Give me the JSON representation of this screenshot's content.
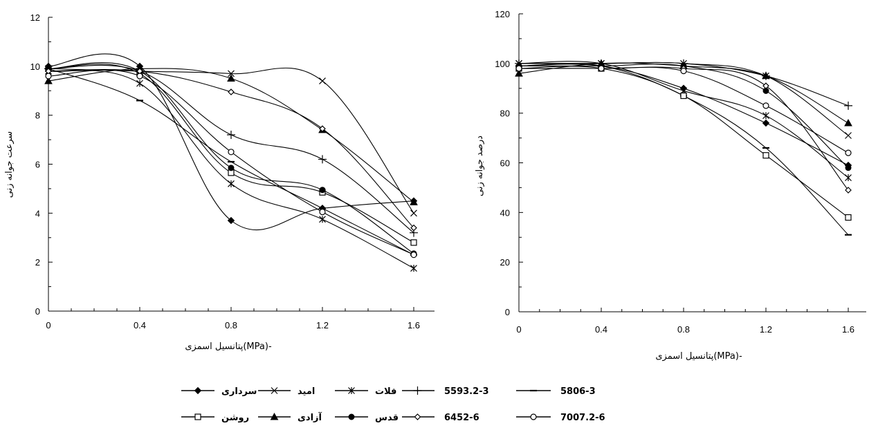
{
  "chart_data": [
    {
      "type": "line",
      "xlabel": "پتانسیل اسمزی(MPa)-",
      "ylabel": "سرعت جوانه زنی",
      "x": [
        0,
        0.4,
        0.8,
        1.2,
        1.6
      ],
      "xticks": [
        "0",
        "0.4",
        "0.8",
        "1.2",
        "1.6"
      ],
      "xlim": [
        0,
        1.6
      ],
      "ylim": [
        0,
        12
      ],
      "yticks": [
        "0",
        "2",
        "4",
        "6",
        "8",
        "10",
        "12"
      ],
      "grid": false,
      "series": [
        {
          "name": "سرداری",
          "marker": "diamond-filled",
          "values": [
            10.0,
            10.0,
            3.7,
            4.2,
            4.5
          ]
        },
        {
          "name": "امید",
          "marker": "x",
          "values": [
            9.9,
            9.8,
            9.7,
            9.4,
            4.0
          ]
        },
        {
          "name": "فلات",
          "marker": "star",
          "values": [
            9.8,
            9.3,
            5.2,
            3.75,
            1.75
          ]
        },
        {
          "name": "5593.2-3",
          "marker": "plus",
          "values": [
            9.9,
            9.8,
            7.2,
            6.2,
            3.2
          ]
        },
        {
          "name": "5806-3",
          "marker": "dash",
          "values": [
            9.9,
            8.6,
            6.1,
            4.2,
            2.3
          ]
        },
        {
          "name": "روشن",
          "marker": "square-open",
          "values": [
            9.9,
            9.7,
            5.65,
            4.85,
            2.8
          ]
        },
        {
          "name": "آزادی",
          "marker": "triangle-filled",
          "values": [
            9.4,
            9.9,
            9.5,
            7.4,
            4.45
          ]
        },
        {
          "name": "قدس",
          "marker": "circle-filled",
          "values": [
            9.9,
            9.8,
            5.85,
            4.95,
            2.35
          ]
        },
        {
          "name": "6452-6",
          "marker": "diamond-open",
          "values": [
            9.8,
            9.8,
            8.95,
            7.45,
            3.4
          ]
        },
        {
          "name": "7007.2-6",
          "marker": "circle-open",
          "values": [
            9.6,
            9.6,
            6.5,
            4.05,
            2.3
          ]
        }
      ]
    },
    {
      "type": "line",
      "xlabel": "پتانسیل اسمزی(MPa)-",
      "ylabel": "درصد جوانه زنی",
      "x": [
        0,
        0.4,
        0.8,
        1.2,
        1.6
      ],
      "xticks": [
        "0",
        "0.4",
        "0.8",
        "1.2",
        "1.6"
      ],
      "xlim": [
        0,
        1.6
      ],
      "ylim": [
        0,
        120
      ],
      "yticks": [
        "0",
        "20",
        "40",
        "60",
        "80",
        "100",
        "120"
      ],
      "grid": false,
      "series": [
        {
          "name": "سرداری",
          "marker": "diamond-filled",
          "values": [
            99,
            99,
            90,
            76,
            59
          ]
        },
        {
          "name": "امید",
          "marker": "x",
          "values": [
            100,
            100,
            100,
            95,
            71
          ]
        },
        {
          "name": "فلات",
          "marker": "star",
          "values": [
            100,
            100,
            89,
            79,
            54
          ]
        },
        {
          "name": "5593.2-3",
          "marker": "plus",
          "values": [
            100,
            100,
            100,
            95,
            83
          ]
        },
        {
          "name": "5806-3",
          "marker": "dash",
          "values": [
            99,
            99,
            87,
            66,
            31
          ]
        },
        {
          "name": "روشن",
          "marker": "square-open",
          "values": [
            98,
            98,
            87,
            63,
            38
          ]
        },
        {
          "name": "آزادی",
          "marker": "triangle-filled",
          "values": [
            96,
            100,
            99,
            95,
            76
          ]
        },
        {
          "name": "قدس",
          "marker": "circle-filled",
          "values": [
            99,
            99,
            99,
            89,
            58
          ]
        },
        {
          "name": "6452-6",
          "marker": "diamond-open",
          "values": [
            98,
            98,
            98,
            91,
            49
          ]
        },
        {
          "name": "7007.2-6",
          "marker": "circle-open",
          "values": [
            98,
            98,
            97,
            83,
            64
          ]
        }
      ]
    }
  ],
  "legend": {
    "placement": "bottom",
    "rows": [
      [
        "سرداری",
        "امید",
        "فلات",
        "5593.2-3",
        "5806-3"
      ],
      [
        "روشن",
        "آزادی",
        "قدس",
        "6452-6",
        "7007.2-6"
      ]
    ]
  }
}
